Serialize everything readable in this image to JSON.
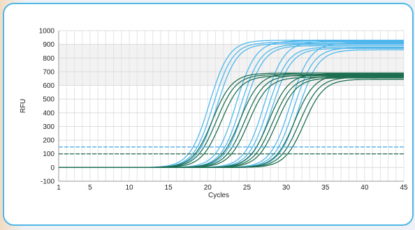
{
  "chart_data": {
    "type": "line",
    "title": "",
    "xlabel": "Cycles",
    "ylabel": "RFU",
    "xlim": [
      1,
      45
    ],
    "ylim": [
      -100,
      1000
    ],
    "x_ticks": [
      1,
      5,
      10,
      15,
      20,
      25,
      30,
      35,
      40,
      45
    ],
    "y_ticks": [
      -100,
      0,
      100,
      200,
      300,
      400,
      500,
      600,
      700,
      800,
      900,
      1000
    ],
    "grid": true,
    "shaded_band": [
      600,
      900
    ],
    "thresholds": [
      {
        "y": 150,
        "color": "#3fa9e3"
      },
      {
        "y": 100,
        "color": "#1f6b4f"
      }
    ],
    "series": [
      {
        "color": "#4fb7ec",
        "plateau": 930,
        "midpoint": 20.2
      },
      {
        "color": "#4fb7ec",
        "plateau": 915,
        "midpoint": 20.7
      },
      {
        "color": "#4fb7ec",
        "plateau": 905,
        "midpoint": 21.2
      },
      {
        "color": "#4fb7ec",
        "plateau": 925,
        "midpoint": 23.6
      },
      {
        "color": "#4fb7ec",
        "plateau": 900,
        "midpoint": 24.2
      },
      {
        "color": "#4fb7ec",
        "plateau": 890,
        "midpoint": 24.7
      },
      {
        "color": "#4fb7ec",
        "plateau": 920,
        "midpoint": 27.2
      },
      {
        "color": "#4fb7ec",
        "plateau": 880,
        "midpoint": 27.7
      },
      {
        "color": "#4fb7ec",
        "plateau": 870,
        "midpoint": 28.2
      },
      {
        "color": "#4fb7ec",
        "plateau": 910,
        "midpoint": 30.5
      },
      {
        "color": "#4fb7ec",
        "plateau": 875,
        "midpoint": 31.0
      },
      {
        "color": "#4fb7ec",
        "plateau": 860,
        "midpoint": 31.6
      },
      {
        "color": "#1e6f52",
        "plateau": 690,
        "midpoint": 20.6
      },
      {
        "color": "#1e6f52",
        "plateau": 680,
        "midpoint": 21.1
      },
      {
        "color": "#1e6f52",
        "plateau": 670,
        "midpoint": 21.7
      },
      {
        "color": "#1e6f52",
        "plateau": 690,
        "midpoint": 24.1
      },
      {
        "color": "#1e6f52",
        "plateau": 675,
        "midpoint": 24.7
      },
      {
        "color": "#1e6f52",
        "plateau": 660,
        "midpoint": 25.2
      },
      {
        "color": "#1e6f52",
        "plateau": 685,
        "midpoint": 27.8
      },
      {
        "color": "#1e6f52",
        "plateau": 665,
        "midpoint": 28.3
      },
      {
        "color": "#1e6f52",
        "plateau": 655,
        "midpoint": 28.8
      },
      {
        "color": "#1e6f52",
        "plateau": 680,
        "midpoint": 31.1
      },
      {
        "color": "#1e6f52",
        "plateau": 660,
        "midpoint": 31.7
      },
      {
        "color": "#1e6f52",
        "plateau": 645,
        "midpoint": 32.3
      }
    ]
  }
}
